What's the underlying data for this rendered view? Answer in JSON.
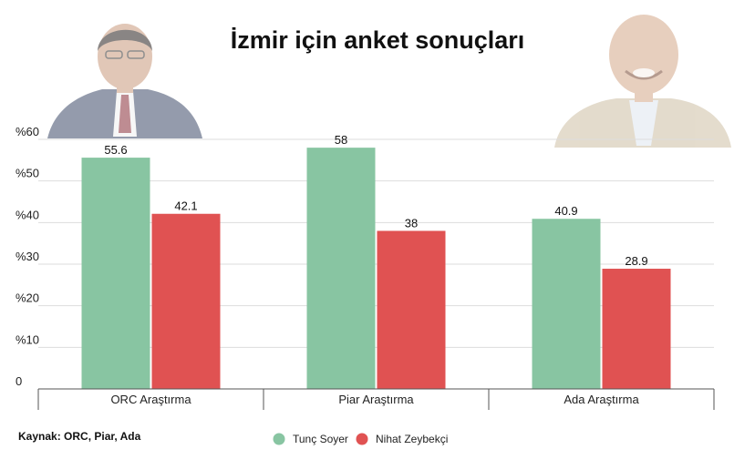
{
  "chart_data": {
    "type": "bar",
    "title": "İzmir için anket sonuçları",
    "categories": [
      "ORC Araştırma",
      "Piar Araştırma",
      "Ada Araştırma"
    ],
    "series": [
      {
        "name": "Tunç Soyer",
        "color": "#88c5a2",
        "values": [
          55.6,
          58,
          40.9
        ]
      },
      {
        "name": "Nihat Zeybekçi",
        "color": "#e05252",
        "values": [
          42.1,
          38,
          28.9
        ]
      }
    ],
    "ylim": [
      0,
      60
    ],
    "yticks": [
      0,
      10,
      20,
      30,
      40,
      50,
      60
    ],
    "ytick_labels": [
      "0",
      "%10",
      "%20",
      "%30",
      "%40",
      "%50",
      "%60"
    ],
    "value_labels": [
      [
        "55.6",
        "58",
        "40.9"
      ],
      [
        "42.1",
        "38",
        "28.9"
      ]
    ],
    "grid": true,
    "legend": "bottom",
    "source": "Kaynak: ORC, Piar, Ada"
  }
}
